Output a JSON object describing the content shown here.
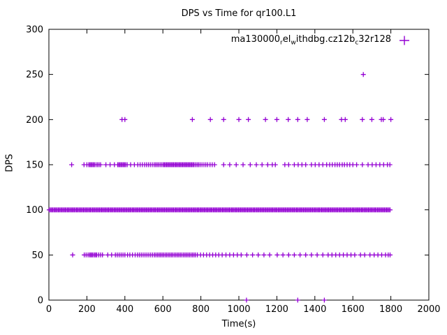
{
  "figure": {
    "background": "#ffffff",
    "foreground": "#000000"
  },
  "chart_data": {
    "type": "scatter",
    "title": "DPS vs Time for qr100.L1",
    "xlabel": "Time(s)",
    "ylabel": "DPS",
    "xlim": [
      0,
      2000
    ],
    "ylim": [
      0,
      300
    ],
    "xticks": [
      0,
      200,
      400,
      600,
      800,
      1000,
      1200,
      1400,
      1600,
      1800,
      2000
    ],
    "yticks": [
      0,
      50,
      100,
      150,
      200,
      250,
      300
    ],
    "grid": false,
    "legend": {
      "position": "top-right",
      "label_raw": "ma130000_rel_withdbg.cz12b_c32r128",
      "segments": [
        {
          "text": "ma130000"
        },
        {
          "text": "r",
          "sub": true
        },
        {
          "text": "el"
        },
        {
          "text": "w",
          "sub": true
        },
        {
          "text": "ithdbg.cz12b"
        },
        {
          "text": "c",
          "sub": true
        },
        {
          "text": "32r128"
        }
      ]
    },
    "series": [
      {
        "name": "ma130000_rel_withdbg.cz12b_c32r128",
        "marker": "plus",
        "color": "#9400d3",
        "bands": [
          {
            "y": 100,
            "x_range": [
              2,
              1800
            ],
            "x_step": 6
          },
          {
            "y": 150,
            "x": [
              120,
              185,
              200,
              210,
              216,
              222,
              228,
              234,
              240,
              248,
              256,
              264,
              272,
              300,
              322,
              345,
              362,
              368,
              374,
              380,
              386,
              392,
              398,
              404,
              412,
              430,
              450,
              468,
              480,
              492,
              504,
              514,
              524,
              534,
              544,
              554,
              562,
              570,
              578,
              586,
              594,
              602,
              608,
              614,
              620,
              626,
              632,
              638,
              644,
              650,
              656,
              662,
              668,
              674,
              680,
              686,
              692,
              698,
              704,
              710,
              716,
              722,
              728,
              734,
              740,
              746,
              752,
              758,
              764,
              772,
              780,
              788,
              796,
              806,
              816,
              826,
              836,
              848,
              860,
              872,
              920,
              952,
              986,
              1022,
              1060,
              1092,
              1122,
              1152,
              1176,
              1192,
              1242,
              1262,
              1292,
              1312,
              1332,
              1352,
              1382,
              1402,
              1422,
              1442,
              1462,
              1478,
              1492,
              1506,
              1518,
              1530,
              1544,
              1556,
              1570,
              1584,
              1600,
              1620,
              1650,
              1680,
              1702,
              1722,
              1742,
              1762,
              1782,
              1795
            ]
          },
          {
            "y": 50,
            "x": [
              125,
              186,
              196,
              206,
              214,
              220,
              226,
              232,
              240,
              246,
              252,
              262,
              272,
              282,
              310,
              330,
              350,
              360,
              370,
              380,
              390,
              400,
              414,
              426,
              440,
              454,
              466,
              476,
              486,
              496,
              506,
              516,
              526,
              536,
              546,
              556,
              564,
              572,
              580,
              588,
              596,
              604,
              612,
              620,
              628,
              636,
              644,
              652,
              660,
              668,
              676,
              684,
              692,
              700,
              708,
              716,
              724,
              732,
              740,
              748,
              756,
              764,
              772,
              782,
              798,
              814,
              830,
              846,
              862,
              878,
              894,
              912,
              932,
              952,
              972,
              992,
              1012,
              1042,
              1072,
              1102,
              1132,
              1162,
              1202,
              1232,
              1262,
              1292,
              1322,
              1352,
              1382,
              1412,
              1442,
              1470,
              1490,
              1510,
              1530,
              1550,
              1570,
              1590,
              1610,
              1640,
              1662,
              1690,
              1712,
              1732,
              1752,
              1772,
              1786,
              1796
            ]
          },
          {
            "y": 200,
            "x": [
              385,
              400,
              755,
              850,
              920,
              1000,
              1050,
              1140,
              1200,
              1260,
              1310,
              1360,
              1450,
              1540,
              1560,
              1650,
              1700,
              1750,
              1760,
              1800
            ]
          },
          {
            "y": 250,
            "x": [
              1655
            ]
          },
          {
            "y": 0,
            "x": [
              1040,
              1310,
              1450
            ]
          }
        ]
      }
    ]
  }
}
